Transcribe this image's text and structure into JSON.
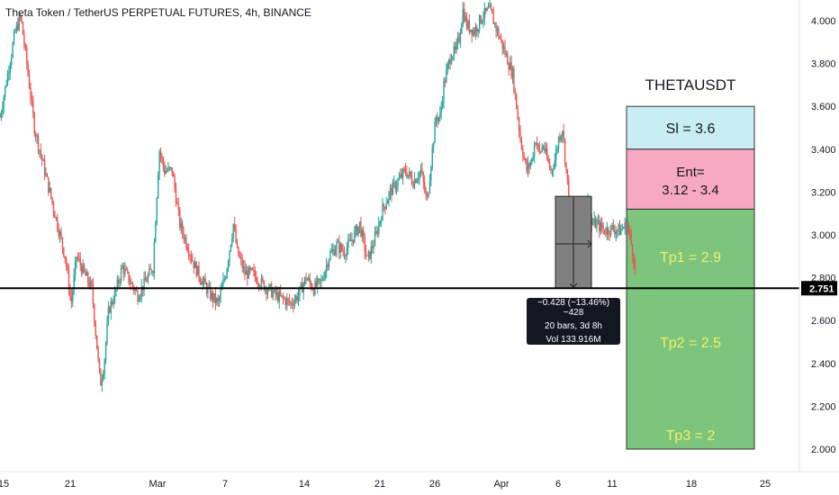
{
  "header": {
    "title": "Theta Token / TetherUS PERPETUAL FUTURES, 4h, BINANCE"
  },
  "colors": {
    "up": "#26a69a",
    "down": "#ef5350",
    "stop_zone": "#c8eef3",
    "entry_zone": "#f7a8c2",
    "tp_zone": "#7dc47c",
    "tp_text": "#f4f06a",
    "price_line": "#000000",
    "measure_fill": "#808080"
  },
  "chart_data": {
    "type": "candlestick",
    "symbol_label": "THETAUSDT",
    "x_ticks": [
      "15",
      "21",
      "Mar",
      "7",
      "14",
      "21",
      "26",
      "Apr",
      "6",
      "11",
      "18",
      "25"
    ],
    "y_ticks": [
      "4.000",
      "3.800",
      "3.600",
      "3.400",
      "3.200",
      "3.000",
      "2.800",
      "2.600",
      "2.400",
      "2.200",
      "2.000"
    ],
    "ylim": [
      1.94,
      4.1
    ],
    "grid": false,
    "horizontal_line": {
      "price": 2.751,
      "label": "2.751"
    },
    "trade_setup": {
      "stop": {
        "label": "Sl = 3.6",
        "from": 3.4,
        "to": 3.6
      },
      "entry": {
        "label_line1": "Ent=",
        "label_line2": "3.12 - 3.4",
        "from": 3.12,
        "to": 3.4
      },
      "targets": [
        {
          "label": "Tp1 = 2.9",
          "price": 2.9
        },
        {
          "label": "Tp2 = 2.5",
          "price": 2.5
        },
        {
          "label": "Tp3 = 2",
          "price": 2.0
        }
      ],
      "zone_bottom": 2.0
    },
    "measure": {
      "line1": "−0.428 (−13.46%) −428",
      "line2": "20 bars, 3d 8h",
      "line3": "Vol 133.916M",
      "from_price": 3.18,
      "to_price": 2.752
    },
    "close_path": [
      {
        "d": 0,
        "p": 3.55
      },
      {
        "d": 1,
        "p": 3.75
      },
      {
        "d": 2,
        "p": 3.95
      },
      {
        "d": 2.7,
        "p": 4.02
      },
      {
        "d": 3.5,
        "p": 3.8
      },
      {
        "d": 4.5,
        "p": 3.5
      },
      {
        "d": 5.5,
        "p": 3.35
      },
      {
        "d": 6.5,
        "p": 3.2
      },
      {
        "d": 7.5,
        "p": 3.05
      },
      {
        "d": 8.5,
        "p": 2.9
      },
      {
        "d": 9.3,
        "p": 2.68
      },
      {
        "d": 10,
        "p": 2.9
      },
      {
        "d": 11,
        "p": 2.82
      },
      {
        "d": 12,
        "p": 2.75
      },
      {
        "d": 13.1,
        "p": 2.3
      },
      {
        "d": 13.6,
        "p": 2.4
      },
      {
        "d": 14.2,
        "p": 2.65
      },
      {
        "d": 15,
        "p": 2.72
      },
      {
        "d": 16,
        "p": 2.85
      },
      {
        "d": 17,
        "p": 2.78
      },
      {
        "d": 18,
        "p": 2.72
      },
      {
        "d": 19,
        "p": 2.78
      },
      {
        "d": 20,
        "p": 2.85
      },
      {
        "d": 20.8,
        "p": 3.4
      },
      {
        "d": 21.5,
        "p": 3.3
      },
      {
        "d": 22.5,
        "p": 3.3
      },
      {
        "d": 23.5,
        "p": 3.05
      },
      {
        "d": 24.5,
        "p": 2.95
      },
      {
        "d": 25.5,
        "p": 2.85
      },
      {
        "d": 26.5,
        "p": 2.78
      },
      {
        "d": 27.5,
        "p": 2.72
      },
      {
        "d": 28.5,
        "p": 2.68
      },
      {
        "d": 29.5,
        "p": 2.82
      },
      {
        "d": 30.5,
        "p": 3.05
      },
      {
        "d": 31,
        "p": 2.92
      },
      {
        "d": 32,
        "p": 2.82
      },
      {
        "d": 33,
        "p": 2.82
      },
      {
        "d": 34,
        "p": 2.78
      },
      {
        "d": 35,
        "p": 2.75
      },
      {
        "d": 36,
        "p": 2.72
      },
      {
        "d": 37,
        "p": 2.7
      },
      {
        "d": 38,
        "p": 2.68
      },
      {
        "d": 39,
        "p": 2.72
      },
      {
        "d": 40,
        "p": 2.8
      },
      {
        "d": 41,
        "p": 2.75
      },
      {
        "d": 42,
        "p": 2.78
      },
      {
        "d": 43,
        "p": 2.9
      },
      {
        "d": 44,
        "p": 2.95
      },
      {
        "d": 45,
        "p": 2.92
      },
      {
        "d": 46,
        "p": 2.98
      },
      {
        "d": 47,
        "p": 3.05
      },
      {
        "d": 48,
        "p": 2.88
      },
      {
        "d": 49,
        "p": 2.98
      },
      {
        "d": 50,
        "p": 3.12
      },
      {
        "d": 51,
        "p": 3.2
      },
      {
        "d": 52,
        "p": 3.25
      },
      {
        "d": 53,
        "p": 3.3
      },
      {
        "d": 54,
        "p": 3.25
      },
      {
        "d": 55,
        "p": 3.3
      },
      {
        "d": 55.8,
        "p": 3.15
      },
      {
        "d": 56.5,
        "p": 3.4
      },
      {
        "d": 57,
        "p": 3.55
      },
      {
        "d": 57.5,
        "p": 3.55
      },
      {
        "d": 58,
        "p": 3.7
      },
      {
        "d": 58.5,
        "p": 3.78
      },
      {
        "d": 59,
        "p": 3.85
      },
      {
        "d": 59.5,
        "p": 3.85
      },
      {
        "d": 60,
        "p": 3.92
      },
      {
        "d": 60.5,
        "p": 4.05
      },
      {
        "d": 61,
        "p": 3.98
      },
      {
        "d": 62,
        "p": 3.95
      },
      {
        "d": 63,
        "p": 4.02
      },
      {
        "d": 64,
        "p": 4.05
      },
      {
        "d": 65,
        "p": 3.95
      },
      {
        "d": 66,
        "p": 3.85
      },
      {
        "d": 67,
        "p": 3.75
      },
      {
        "d": 67.5,
        "p": 3.6
      },
      {
        "d": 68,
        "p": 3.45
      },
      {
        "d": 68.8,
        "p": 3.3
      },
      {
        "d": 69.5,
        "p": 3.35
      },
      {
        "d": 70,
        "p": 3.45
      },
      {
        "d": 70.5,
        "p": 3.38
      },
      {
        "d": 71,
        "p": 3.42
      },
      {
        "d": 71.5,
        "p": 3.35
      },
      {
        "d": 72,
        "p": 3.3
      },
      {
        "d": 72.5,
        "p": 3.35
      },
      {
        "d": 73,
        "p": 3.45
      },
      {
        "d": 73.5,
        "p": 3.5
      },
      {
        "d": 74,
        "p": 3.3
      },
      {
        "d": 74.5,
        "p": 3.12
      },
      {
        "d": 75,
        "p": 2.98
      },
      {
        "d": 75.6,
        "p": 3.0
      },
      {
        "d": 76.2,
        "p": 3.12
      },
      {
        "d": 76.8,
        "p": 3.15
      },
      {
        "d": 77.3,
        "p": 3.05
      },
      {
        "d": 78,
        "p": 3.05
      },
      {
        "d": 79,
        "p": 3.02
      },
      {
        "d": 80,
        "p": 3.03
      },
      {
        "d": 81,
        "p": 3.02
      },
      {
        "d": 82,
        "p": 3.05
      },
      {
        "d": 82.8,
        "p": 2.9
      },
      {
        "d": 83.1,
        "p": 2.78
      }
    ]
  }
}
